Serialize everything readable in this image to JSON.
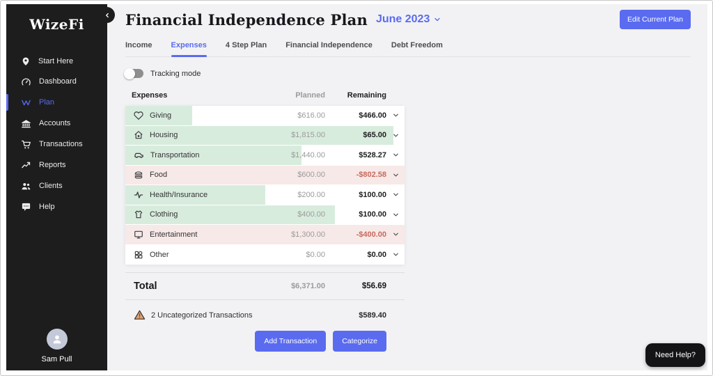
{
  "brand": {
    "logo": "WizeFi",
    "user_name": "Sam Pull"
  },
  "sidebar": {
    "items": [
      {
        "label": "Start Here",
        "icon": "pin-icon",
        "active": false
      },
      {
        "label": "Dashboard",
        "icon": "gauge-icon",
        "active": false
      },
      {
        "label": "Plan",
        "icon": "w-mark-icon",
        "active": true
      },
      {
        "label": "Accounts",
        "icon": "bank-icon",
        "active": false
      },
      {
        "label": "Transactions",
        "icon": "cart-icon",
        "active": false
      },
      {
        "label": "Reports",
        "icon": "trend-icon",
        "active": false
      },
      {
        "label": "Clients",
        "icon": "people-icon",
        "active": false
      },
      {
        "label": "Help",
        "icon": "chat-icon",
        "active": false
      }
    ]
  },
  "header": {
    "title": "Financial Independence Plan",
    "period": "June 2023",
    "edit_button": "Edit Current Plan"
  },
  "tabs": [
    {
      "label": "Income",
      "active": false
    },
    {
      "label": "Expenses",
      "active": true
    },
    {
      "label": "4 Step Plan",
      "active": false
    },
    {
      "label": "Financial Independence",
      "active": false
    },
    {
      "label": "Debt Freedom",
      "active": false
    }
  ],
  "tracking_toggle": {
    "label": "Tracking mode",
    "state": "off"
  },
  "table": {
    "columns": {
      "category": "Expenses",
      "planned": "Planned",
      "remaining": "Remaining"
    },
    "rows": [
      {
        "name": "Giving",
        "icon": "heart-icon",
        "planned": "$616.00",
        "remaining": "$466.00",
        "fill_pct": 24,
        "fill": "green",
        "negative": false
      },
      {
        "name": "Housing",
        "icon": "home-icon",
        "planned": "$1,815.00",
        "remaining": "$65.00",
        "fill_pct": 96,
        "fill": "green",
        "negative": false
      },
      {
        "name": "Transportation",
        "icon": "car-icon",
        "planned": "$1,440.00",
        "remaining": "$528.27",
        "fill_pct": 63,
        "fill": "green",
        "negative": false
      },
      {
        "name": "Food",
        "icon": "burger-icon",
        "planned": "$600.00",
        "remaining": "-$802.58",
        "fill_pct": 100,
        "fill": "red",
        "negative": true
      },
      {
        "name": "Health/Insurance",
        "icon": "pulse-icon",
        "planned": "$200.00",
        "remaining": "$100.00",
        "fill_pct": 50,
        "fill": "green",
        "negative": false
      },
      {
        "name": "Clothing",
        "icon": "shirt-icon",
        "planned": "$400.00",
        "remaining": "$100.00",
        "fill_pct": 75,
        "fill": "green",
        "negative": false
      },
      {
        "name": "Entertainment",
        "icon": "monitor-icon",
        "planned": "$1,300.00",
        "remaining": "-$400.00",
        "fill_pct": 100,
        "fill": "red",
        "negative": true
      },
      {
        "name": "Other",
        "icon": "grid-icon",
        "planned": "$0.00",
        "remaining": "$0.00",
        "fill_pct": 0,
        "fill": "none",
        "negative": false
      }
    ],
    "total": {
      "label": "Total",
      "planned": "$6,371.00",
      "remaining": "$56.69"
    }
  },
  "uncategorized": {
    "label": "2 Uncategorized Transactions",
    "amount": "$589.40"
  },
  "actions": {
    "add_transaction": "Add Transaction",
    "categorize": "Categorize"
  },
  "help_button": "Need Help?",
  "colors": {
    "accent": "#5a6bf0",
    "green_fill": "#d8ecdd",
    "red_fill": "#f7e9e8",
    "negative_text": "#c8695b",
    "sidebar_bg": "#1d1d1d"
  }
}
